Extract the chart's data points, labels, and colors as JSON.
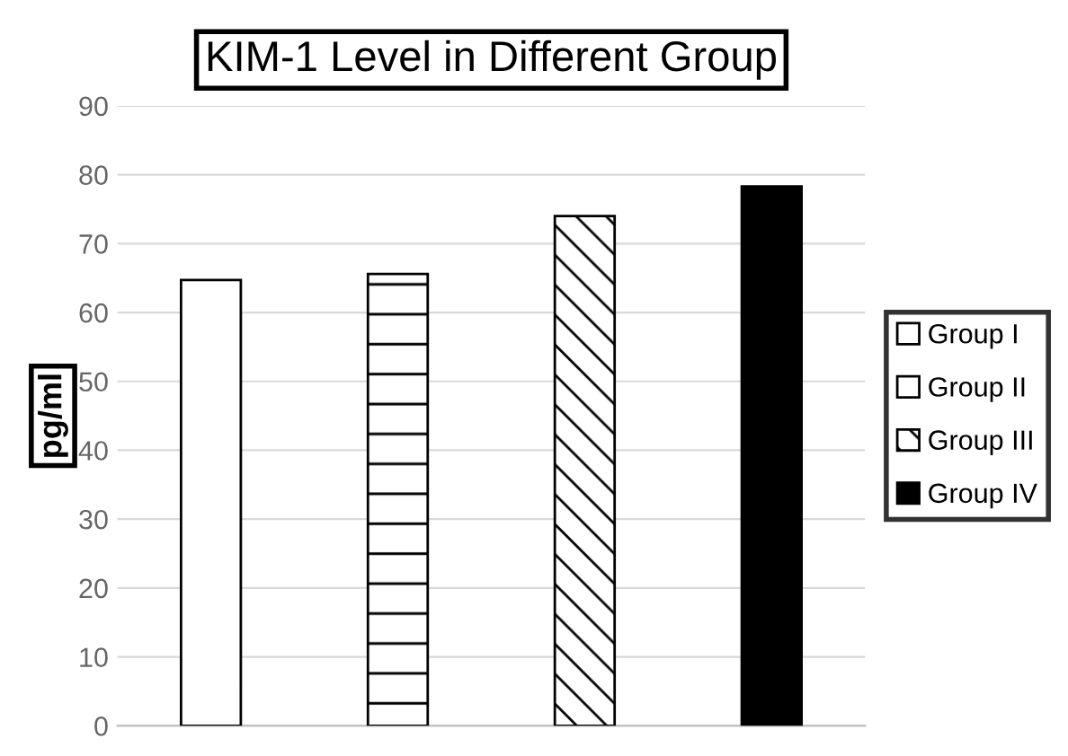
{
  "chart_data": {
    "type": "bar",
    "title": "KIM-1 Level in Different Group",
    "ylabel": "pg/ml",
    "categories": [
      null,
      null,
      null,
      null
    ],
    "series": [
      {
        "name": "Group I",
        "color": "#ffffff",
        "values": [
          64.7,
          null,
          null,
          null
        ]
      },
      {
        "name": "Group II",
        "color": "#000000",
        "values": [
          null,
          65.6,
          null,
          null
        ]
      },
      {
        "name": "Group III",
        "color": "#000000",
        "values": [
          null,
          null,
          74.0,
          null
        ]
      },
      {
        "name": "Group IV",
        "color": "#000000",
        "values": [
          null,
          null,
          null,
          78.3
        ]
      }
    ],
    "ylim": [
      0,
      90
    ],
    "yticks": [
      0,
      10,
      20,
      30,
      40,
      50,
      60,
      70,
      80,
      90
    ],
    "grid": "y",
    "legend": "right"
  }
}
